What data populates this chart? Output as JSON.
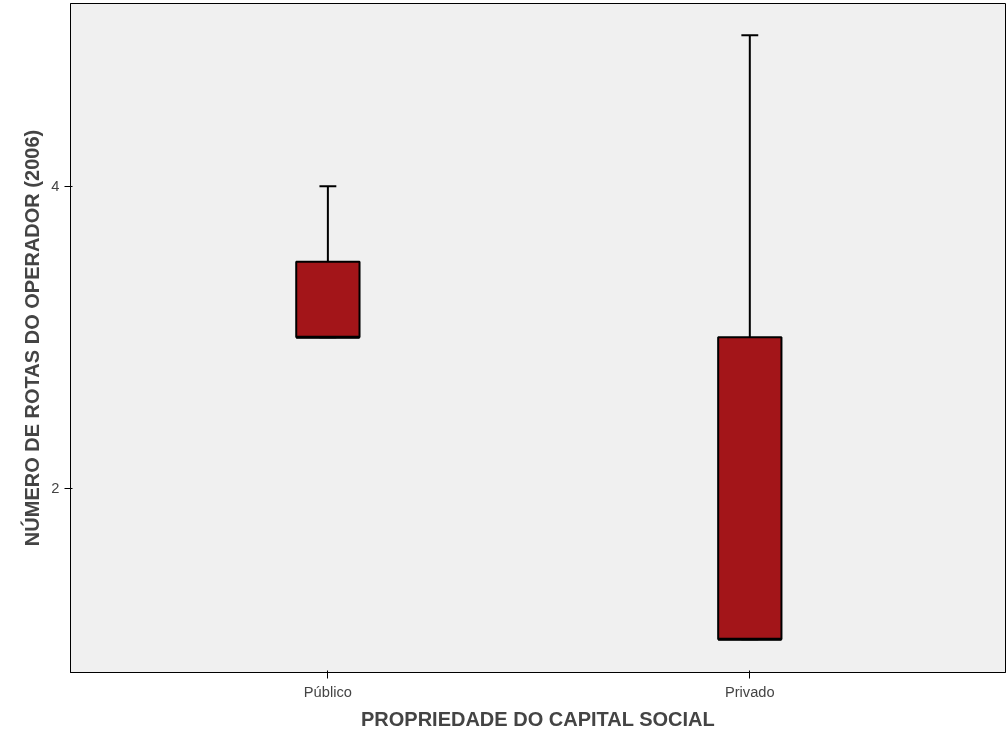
{
  "chart_data": {
    "type": "box",
    "xlabel": "PROPRIEDADE DO CAPITAL SOCIAL",
    "ylabel": "NÚMERO DE ROTAS DO OPERADOR (2006)",
    "categories": [
      "Público",
      "Privado"
    ],
    "boxes": [
      {
        "low": 3,
        "q1": 3,
        "median": 3,
        "q3": 3.5,
        "high": 4
      },
      {
        "low": 1,
        "q1": 1,
        "median": 1,
        "q3": 3,
        "high": 5
      }
    ],
    "color": "#a31519",
    "ylim": [
      0.78,
      5.21
    ],
    "yticks": [
      2,
      4
    ],
    "grid": false
  }
}
